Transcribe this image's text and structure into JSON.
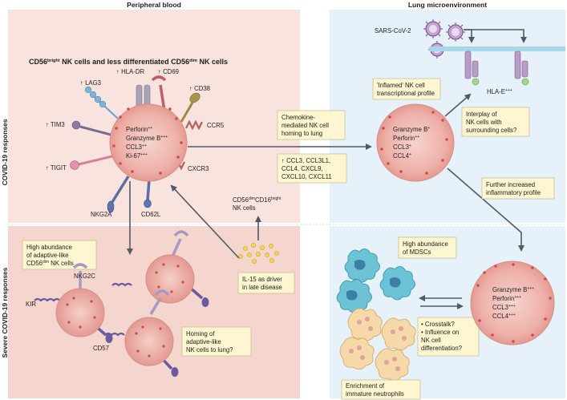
{
  "headers": {
    "left": "Peripheral blood",
    "right": "Lung microenvironment"
  },
  "side_labels": {
    "top": "COVID-19 responses",
    "bottom": "Severe COVID-19 responses"
  },
  "top_left": {
    "title_main": "CD56",
    "title_sup": "bright",
    "title_rest": " NK cells and less differentiated CD56",
    "title_sup2": "dim",
    "title_end": " NK cells",
    "receptors": {
      "lag3": "↑ LAG3",
      "hladr": "↑ HLA-DR",
      "cd69": "↑ CD69",
      "cd38": "↑ CD38",
      "tim3": "↑ TIM3",
      "ccr5": "CCR5",
      "tigit": "↑ TIGIT",
      "cxcr3": "CXCR3",
      "nkg2a": "NKG2A",
      "cd62l": "CD62L"
    },
    "cell_lines": {
      "l1": "Perforin",
      "l1s": "++",
      "l2": "Granzyme B",
      "l2s": "+++",
      "l3": "CCL3",
      "l3s": "++",
      "l4": "Ki-67",
      "l4s": "+++"
    }
  },
  "middle": {
    "chemokine_box": [
      "Chemokine-",
      "mediated NK cell",
      "homing to lung"
    ],
    "chemokine_list": [
      "↑ CCL3, CCL3L1,",
      "CCL4, CXCL9,",
      "CXCL10, CXCL11"
    ],
    "dim_cells": {
      "a": "CD56",
      "as": "dim",
      "b": "CD16",
      "bs": "bright",
      "c": "NK cells"
    },
    "il15_box": [
      "IL-15 as driver",
      "in late disease"
    ]
  },
  "top_right": {
    "virus": "SARS-CoV-2",
    "hlae": "HLA-E",
    "hlae_sup": "+++",
    "profile_box": [
      "'Inflamed' NK cell",
      "transcriptional profile"
    ],
    "cell_lines": {
      "l1": "Granzyme B",
      "l1s": "+",
      "l2": "Perforin",
      "l2s": "++",
      "l3": "CCL3",
      "l3s": "+",
      "l4": "CCL4",
      "l4s": "+"
    },
    "interplay_box": [
      "Interplay of",
      "NK cells with",
      "surrounding cells?"
    ],
    "further_box": [
      "Further increased",
      "inflammatory profile"
    ]
  },
  "bottom_left": {
    "abundance_box": [
      "High abundance",
      "of adaptive-like"
    ],
    "abundance_line3": "CD56",
    "abundance_line3_sup": "dim",
    "abundance_line3_end": " NK cells",
    "nkg2c": "NKG2C",
    "kir": "KIR",
    "cd57": "CD57",
    "homing_box": [
      "Homing of",
      "adaptive-like",
      "NK cells to lung?"
    ]
  },
  "bottom_right": {
    "mdsc_box": [
      "High abundance",
      "of MDSCs"
    ],
    "crosstalk_box": [
      "• Crosstalk?",
      "• Influence on",
      "   NK cell",
      "   differentiation?"
    ],
    "neutro_box": [
      "Enrichment of",
      "immature neutrophils"
    ],
    "cell_lines": {
      "l1": "Granzyme B",
      "l1s": "+++",
      "l2": "Perforin",
      "l2s": "+++",
      "l3": "CCL3",
      "l3s": "+++",
      "l4": "CCL4",
      "l4s": "+++"
    }
  },
  "colors": {
    "pink_panel": "#f9e3de",
    "pink_panel_dark": "#f3d0c9",
    "blue_panel": "#e5f1fa",
    "cell_fill": "#eeb4ac",
    "cell_dot": "#c24a4a",
    "box_fill": "#fdf6d1"
  }
}
